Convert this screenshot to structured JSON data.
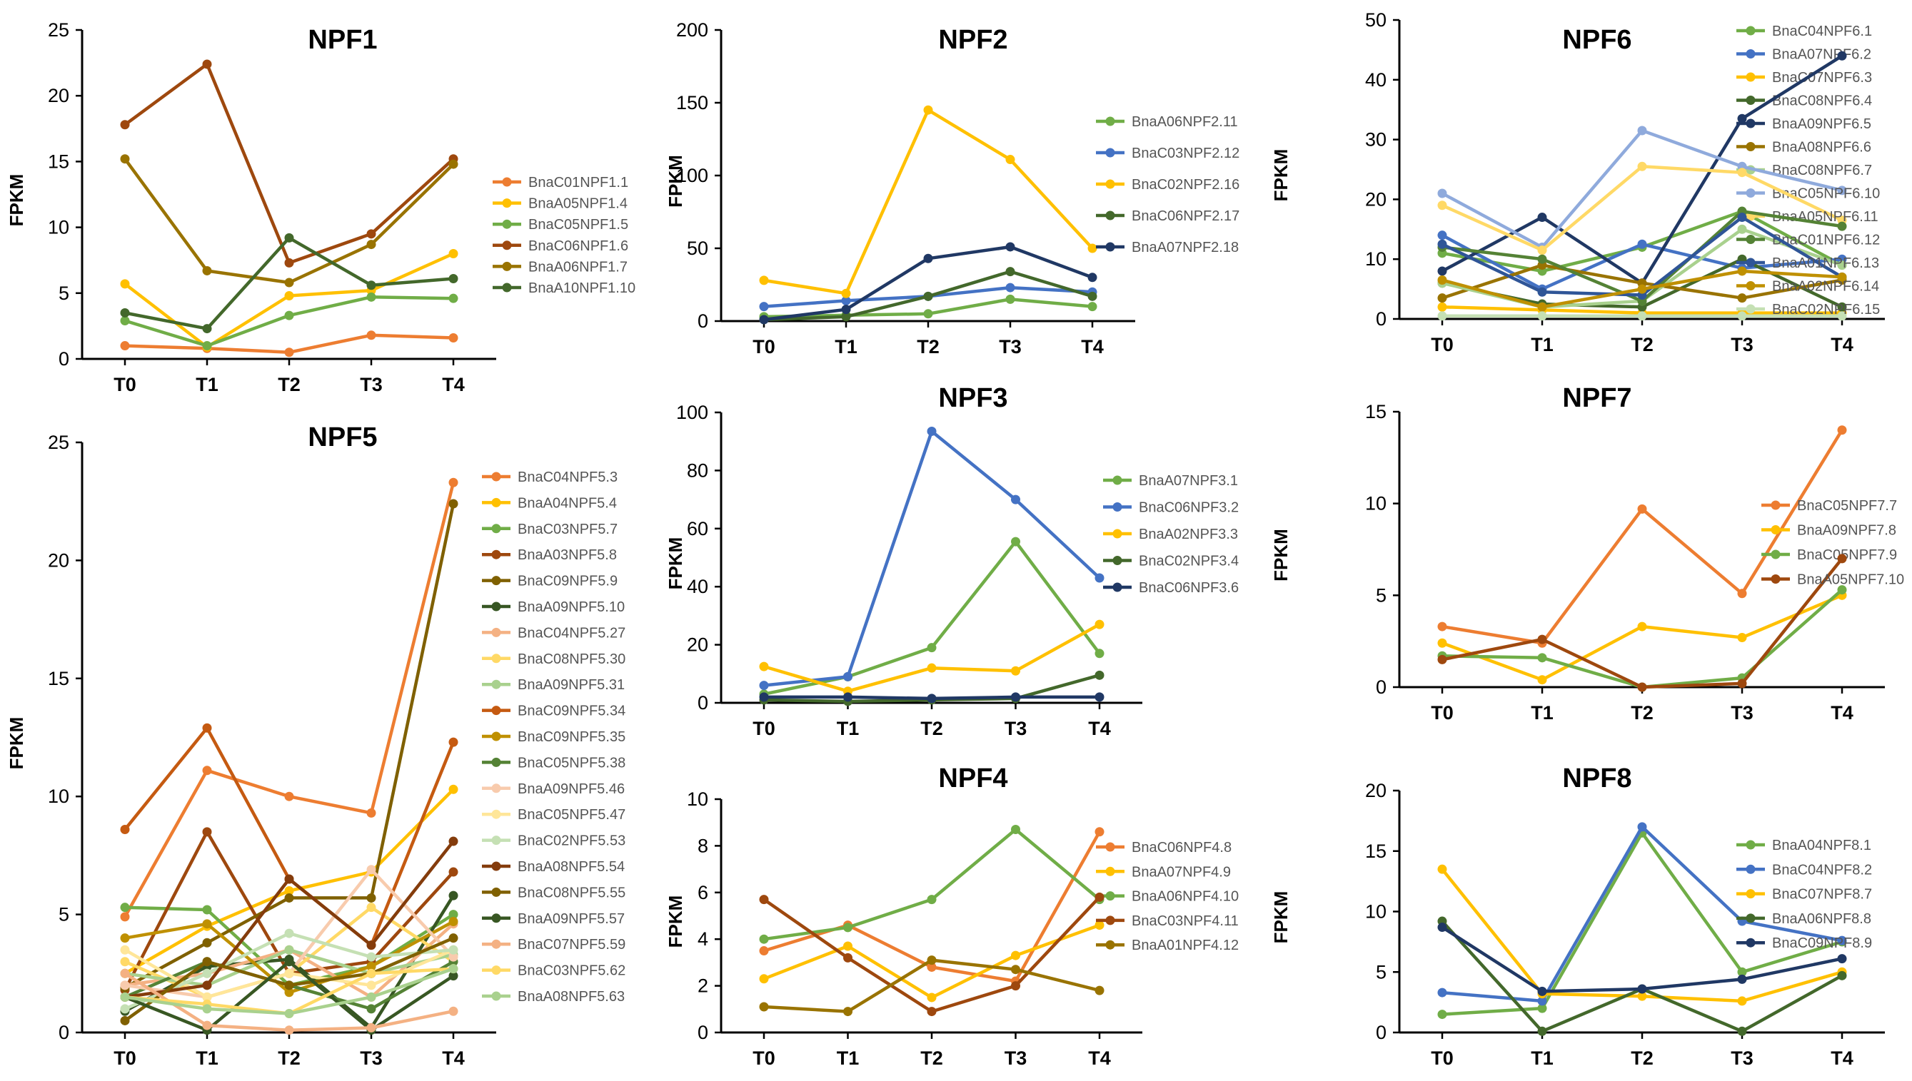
{
  "chart_data": [
    {
      "type": "line",
      "title": "NPF1",
      "ylabel": "FPKM",
      "x": [
        "T0",
        "T1",
        "T2",
        "T3",
        "T4"
      ],
      "ylim": [
        0,
        25
      ],
      "yticks": [
        0,
        5,
        10,
        15,
        20,
        25
      ],
      "series": [
        {
          "name": "BnaC01NPF1.1",
          "color": "#ED7D31",
          "values": [
            1.0,
            0.8,
            0.5,
            1.8,
            1.6
          ]
        },
        {
          "name": "BnaA05NPF1.4",
          "color": "#FFC000",
          "values": [
            5.7,
            0.9,
            4.8,
            5.2,
            8.0
          ]
        },
        {
          "name": "BnaC05NPF1.5",
          "color": "#70AD47",
          "values": [
            2.9,
            1.0,
            3.3,
            4.7,
            4.6
          ]
        },
        {
          "name": "BnaC06NPF1.6",
          "color": "#9E480E",
          "values": [
            17.8,
            22.4,
            7.3,
            9.5,
            15.2
          ]
        },
        {
          "name": "BnaA06NPF1.7",
          "color": "#997300",
          "values": [
            15.2,
            6.7,
            5.8,
            8.7,
            14.8
          ]
        },
        {
          "name": "BnaA10NPF1.10",
          "color": "#43682B",
          "values": [
            3.5,
            2.3,
            9.2,
            5.6,
            6.1
          ]
        }
      ]
    },
    {
      "type": "line",
      "title": "NPF2",
      "ylabel": "FPKM",
      "x": [
        "T0",
        "T1",
        "T2",
        "T3",
        "T4"
      ],
      "ylim": [
        0,
        200
      ],
      "yticks": [
        0,
        50,
        100,
        150,
        200
      ],
      "series": [
        {
          "name": "BnaA06NPF2.11",
          "color": "#70AD47",
          "values": [
            3,
            4,
            5,
            15,
            10
          ]
        },
        {
          "name": "BnaC03NPF2.12",
          "color": "#4472C4",
          "values": [
            10,
            14,
            17,
            23,
            20
          ]
        },
        {
          "name": "BnaC02NPF2.16",
          "color": "#FFC000",
          "values": [
            28,
            19,
            145,
            111,
            50
          ]
        },
        {
          "name": "BnaC06NPF2.17",
          "color": "#43682B",
          "values": [
            1,
            3,
            17,
            34,
            17
          ]
        },
        {
          "name": "BnaA07NPF2.18",
          "color": "#203864",
          "values": [
            1,
            8,
            43,
            51,
            30
          ]
        }
      ]
    },
    {
      "type": "line",
      "title": "NPF6",
      "ylabel": "FPKM",
      "x": [
        "T0",
        "T1",
        "T2",
        "T3",
        "T4"
      ],
      "ylim": [
        0,
        50
      ],
      "yticks": [
        0,
        10,
        20,
        30,
        40,
        50
      ],
      "series": [
        {
          "name": "BnaC04NPF6.1",
          "color": "#70AD47",
          "values": [
            11,
            8,
            12,
            18,
            9
          ]
        },
        {
          "name": "BnaA07NPF6.2",
          "color": "#4472C4",
          "values": [
            14,
            5,
            12.5,
            8.5,
            10
          ]
        },
        {
          "name": "BnaC07NPF6.3",
          "color": "#FFC000",
          "values": [
            2,
            1.5,
            1,
            1,
            1
          ]
        },
        {
          "name": "BnaC08NPF6.4",
          "color": "#43682B",
          "values": [
            6,
            2.5,
            2,
            10,
            2
          ]
        },
        {
          "name": "BnaA09NPF6.5",
          "color": "#203864",
          "values": [
            8,
            17,
            6,
            33.5,
            44
          ]
        },
        {
          "name": "BnaA08NPF6.6",
          "color": "#997300",
          "values": [
            3.5,
            9,
            6,
            3.5,
            6.5
          ]
        },
        {
          "name": "BnaC08NPF6.7",
          "color": "#A9D18E",
          "values": [
            6,
            2,
            3,
            15,
            9
          ]
        },
        {
          "name": "BnaC05NPF6.10",
          "color": "#8FAADC",
          "values": [
            21,
            12,
            31.5,
            25.5,
            21.5
          ]
        },
        {
          "name": "BnaA05NPF6.11",
          "color": "#FFD966",
          "values": [
            19,
            11.5,
            25.5,
            24.5,
            16.5
          ]
        },
        {
          "name": "BnaC01NPF6.12",
          "color": "#548235",
          "values": [
            12,
            10,
            3,
            18,
            15.5
          ]
        },
        {
          "name": "BnaA01NPF6.13",
          "color": "#2F5597",
          "values": [
            12.5,
            4.5,
            4,
            17,
            7
          ]
        },
        {
          "name": "BnaA02NPF6.14",
          "color": "#BF9000",
          "values": [
            6.5,
            2,
            5,
            8,
            7
          ]
        },
        {
          "name": "BnaC02NPF6.15",
          "color": "#C5E0B4",
          "values": [
            0.5,
            0.5,
            0.5,
            0.5,
            0.5
          ]
        }
      ]
    },
    {
      "type": "line",
      "title": "NPF5",
      "ylabel": "FPKM",
      "x": [
        "T0",
        "T1",
        "T2",
        "T3",
        "T4"
      ],
      "ylim": [
        0,
        25
      ],
      "yticks": [
        0,
        5,
        10,
        15,
        20,
        25
      ],
      "series": [
        {
          "name": "BnaC04NPF5.3",
          "color": "#ED7D31",
          "values": [
            4.9,
            11.1,
            10.0,
            9.3,
            23.3
          ]
        },
        {
          "name": "BnaA04NPF5.4",
          "color": "#FFC000",
          "values": [
            2.5,
            4.5,
            6.0,
            6.8,
            10.3
          ]
        },
        {
          "name": "BnaC03NPF5.7",
          "color": "#70AD47",
          "values": [
            5.3,
            5.2,
            2.0,
            2.8,
            5.0
          ]
        },
        {
          "name": "BnaA03NPF5.8",
          "color": "#9E480E",
          "values": [
            1.8,
            8.5,
            2.5,
            3.0,
            6.8
          ]
        },
        {
          "name": "BnaC09NPF5.9",
          "color": "#7F6000",
          "values": [
            1.9,
            3.8,
            5.7,
            5.7,
            22.4
          ]
        },
        {
          "name": "BnaA09NPF5.10",
          "color": "#375623",
          "values": [
            0.9,
            2.8,
            3.1,
            0.2,
            5.8
          ]
        },
        {
          "name": "BnaC04NPF5.27",
          "color": "#F4B183",
          "values": [
            2.0,
            2.5,
            3.5,
            1.5,
            4.6
          ]
        },
        {
          "name": "BnaC08NPF5.30",
          "color": "#FFD966",
          "values": [
            3.0,
            1.5,
            2.5,
            5.3,
            3.0
          ]
        },
        {
          "name": "BnaA09NPF5.31",
          "color": "#A9D18E",
          "values": [
            2.5,
            2.0,
            3.5,
            2.5,
            3.3
          ]
        },
        {
          "name": "BnaC09NPF5.34",
          "color": "#C55A11",
          "values": [
            8.6,
            12.9,
            6.5,
            3.7,
            12.3
          ]
        },
        {
          "name": "BnaC09NPF5.35",
          "color": "#BF9000",
          "values": [
            4.0,
            4.6,
            1.7,
            2.8,
            4.7
          ]
        },
        {
          "name": "BnaC05NPF5.38",
          "color": "#548235",
          "values": [
            1.5,
            3.0,
            2.0,
            1.0,
            3.0
          ]
        },
        {
          "name": "BnaA09NPF5.46",
          "color": "#F8CBAD",
          "values": [
            2.0,
            1.5,
            2.5,
            6.9,
            3.2
          ]
        },
        {
          "name": "BnaC05NPF5.47",
          "color": "#FFE699",
          "values": [
            3.5,
            1.5,
            2.5,
            2.0,
            3.5
          ]
        },
        {
          "name": "BnaC02NPF5.53",
          "color": "#C5E0B4",
          "values": [
            1.0,
            2.5,
            4.2,
            3.2,
            3.5
          ]
        },
        {
          "name": "BnaA08NPF5.54",
          "color": "#843C0C",
          "values": [
            1.5,
            2.0,
            6.5,
            3.7,
            8.1
          ]
        },
        {
          "name": "BnaC08NPF5.55",
          "color": "#806000",
          "values": [
            0.5,
            3.0,
            2.0,
            2.5,
            4.0
          ]
        },
        {
          "name": "BnaA09NPF5.57",
          "color": "#385723",
          "values": [
            1.5,
            0.1,
            3.0,
            0.1,
            2.4
          ]
        },
        {
          "name": "BnaC07NPF5.59",
          "color": "#F4B183",
          "values": [
            2.5,
            0.3,
            0.1,
            0.2,
            0.9
          ]
        },
        {
          "name": "BnaC03NPF5.62",
          "color": "#FFD966",
          "values": [
            1.5,
            1.2,
            0.8,
            2.5,
            2.7
          ]
        },
        {
          "name": "BnaA08NPF5.63",
          "color": "#A9D18E",
          "values": [
            1.5,
            1.0,
            0.8,
            1.5,
            2.7
          ]
        }
      ]
    },
    {
      "type": "line",
      "title": "NPF3",
      "ylabel": "FPKM",
      "x": [
        "T0",
        "T1",
        "T2",
        "T3",
        "T4"
      ],
      "ylim": [
        0,
        100
      ],
      "yticks": [
        0,
        20,
        40,
        60,
        80,
        100
      ],
      "series": [
        {
          "name": "BnaA07NPF3.1",
          "color": "#70AD47",
          "values": [
            3,
            9,
            19,
            55.5,
            17
          ]
        },
        {
          "name": "BnaC06NPF3.2",
          "color": "#4472C4",
          "values": [
            6,
            9,
            93.5,
            70,
            43
          ]
        },
        {
          "name": "BnaA02NPF3.3",
          "color": "#FFC000",
          "values": [
            12.5,
            4,
            12,
            11,
            27
          ]
        },
        {
          "name": "BnaC02NPF3.4",
          "color": "#43682B",
          "values": [
            1,
            0.5,
            1,
            1.5,
            9.5
          ]
        },
        {
          "name": "BnaC06NPF3.6",
          "color": "#203864",
          "values": [
            2,
            2,
            1.5,
            2,
            2
          ]
        }
      ]
    },
    {
      "type": "line",
      "title": "NPF7",
      "ylabel": "FPKM",
      "x": [
        "T0",
        "T1",
        "T2",
        "T3",
        "T4"
      ],
      "ylim": [
        0,
        15
      ],
      "yticks": [
        0,
        5,
        10,
        15
      ],
      "series": [
        {
          "name": "BnaC05NPF7.7",
          "color": "#ED7D31",
          "values": [
            3.3,
            2.4,
            9.7,
            5.1,
            14.0
          ]
        },
        {
          "name": "BnaA09NPF7.8",
          "color": "#FFC000",
          "values": [
            2.4,
            0.4,
            3.3,
            2.7,
            5.0
          ]
        },
        {
          "name": "BnaC05NPF7.9",
          "color": "#70AD47",
          "values": [
            1.7,
            1.6,
            0.0,
            0.5,
            5.3
          ]
        },
        {
          "name": "BnaA05NPF7.10",
          "color": "#9E480E",
          "values": [
            1.5,
            2.6,
            0.0,
            0.2,
            7.0
          ]
        }
      ]
    },
    {
      "type": "line",
      "title": "NPF4",
      "ylabel": "FPKM",
      "x": [
        "T0",
        "T1",
        "T2",
        "T3",
        "T4"
      ],
      "ylim": [
        0,
        10
      ],
      "yticks": [
        0,
        2,
        4,
        6,
        8,
        10
      ],
      "series": [
        {
          "name": "BnaC06NPF4.8",
          "color": "#ED7D31",
          "values": [
            3.5,
            4.6,
            2.8,
            2.2,
            8.6
          ]
        },
        {
          "name": "BnaA07NPF4.9",
          "color": "#FFC000",
          "values": [
            2.3,
            3.7,
            1.5,
            3.3,
            4.6
          ]
        },
        {
          "name": "BnaA06NPF4.10",
          "color": "#70AD47",
          "values": [
            4.0,
            4.5,
            5.7,
            8.7,
            5.7
          ]
        },
        {
          "name": "BnaC03NPF4.11",
          "color": "#9E480E",
          "values": [
            5.7,
            3.2,
            0.9,
            2.0,
            5.8
          ]
        },
        {
          "name": "BnaA01NPF4.12",
          "color": "#997300",
          "values": [
            1.1,
            0.9,
            3.1,
            2.7,
            1.8
          ]
        }
      ]
    },
    {
      "type": "line",
      "title": "NPF8",
      "ylabel": "FPKM",
      "x": [
        "T0",
        "T1",
        "T2",
        "T3",
        "T4"
      ],
      "ylim": [
        0,
        20
      ],
      "yticks": [
        0,
        5,
        10,
        15,
        20
      ],
      "series": [
        {
          "name": "BnaA04NPF8.1",
          "color": "#70AD47",
          "values": [
            1.5,
            2.0,
            16.5,
            5.0,
            7.5
          ]
        },
        {
          "name": "BnaC04NPF8.2",
          "color": "#4472C4",
          "values": [
            3.3,
            2.6,
            17.0,
            9.2,
            7.6
          ]
        },
        {
          "name": "BnaC07NPF8.7",
          "color": "#FFC000",
          "values": [
            13.5,
            3.2,
            3.0,
            2.6,
            5.0
          ]
        },
        {
          "name": "BnaA06NPF8.8",
          "color": "#43682B",
          "values": [
            9.2,
            0.1,
            3.6,
            0.1,
            4.7
          ]
        },
        {
          "name": "BnaC09NPF8.9",
          "color": "#203864",
          "values": [
            8.7,
            3.4,
            3.6,
            4.4,
            6.1
          ]
        }
      ]
    }
  ]
}
